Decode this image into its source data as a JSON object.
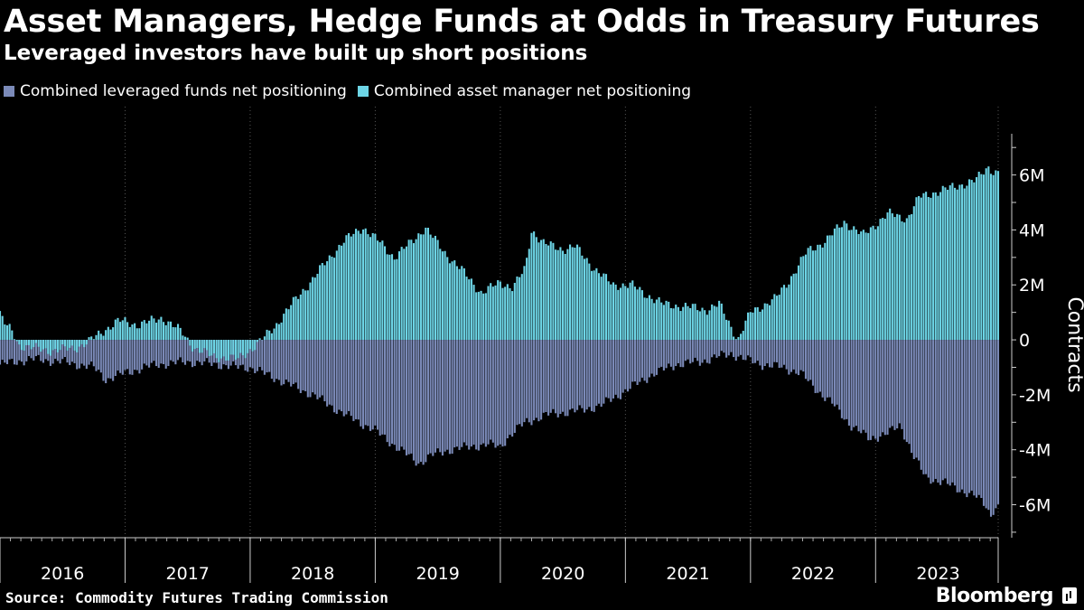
{
  "header": {
    "title": "Asset Managers, Hedge Funds at Odds in Treasury Futures",
    "subtitle": "Leveraged investors have built up short positions"
  },
  "legend": {
    "items": [
      {
        "label": "Combined leveraged funds net positioning",
        "color": "#7b8ab8"
      },
      {
        "label": "Combined asset manager net positioning",
        "color": "#6dd5e6"
      }
    ]
  },
  "footer": {
    "source": "Source: Commodity Futures Trading Commission",
    "brand": "Bloomberg"
  },
  "chart_data": {
    "type": "bar",
    "title": "Asset Managers, Hedge Funds at Odds in Treasury Futures",
    "subtitle": "Leveraged investors have built up short positions",
    "ylabel": "Contracts",
    "ylim": [
      -7.2,
      7.5
    ],
    "yticks": [
      {
        "value": 6,
        "label": "6M"
      },
      {
        "value": 4,
        "label": "4M"
      },
      {
        "value": 2,
        "label": "2M"
      },
      {
        "value": 0,
        "label": "0"
      },
      {
        "value": -2,
        "label": "-2M"
      },
      {
        "value": -4,
        "label": "-4M"
      },
      {
        "value": -6,
        "label": "-6M"
      }
    ],
    "xlim": [
      2016.0,
      2023.98
    ],
    "xticks": [
      {
        "value": 2016.5,
        "label": "2016"
      },
      {
        "value": 2017.5,
        "label": "2017"
      },
      {
        "value": 2018.5,
        "label": "2018"
      },
      {
        "value": 2019.5,
        "label": "2019"
      },
      {
        "value": 2020.5,
        "label": "2020"
      },
      {
        "value": 2021.5,
        "label": "2021"
      },
      {
        "value": 2022.5,
        "label": "2022"
      },
      {
        "value": 2023.5,
        "label": "2023"
      }
    ],
    "year_boundaries": [
      2017,
      2018,
      2019,
      2020,
      2021,
      2022,
      2023
    ],
    "series": [
      {
        "name": "Combined leveraged funds net positioning",
        "color": "#7b8ab8",
        "points": [
          [
            2016.0,
            -0.9
          ],
          [
            2016.25,
            -0.7
          ],
          [
            2016.5,
            -0.8
          ],
          [
            2016.75,
            -1.0
          ],
          [
            2016.85,
            -1.45
          ],
          [
            2017.0,
            -1.2
          ],
          [
            2017.25,
            -0.9
          ],
          [
            2017.5,
            -0.8
          ],
          [
            2017.75,
            -0.9
          ],
          [
            2017.9,
            -1.0
          ],
          [
            2018.0,
            -1.0
          ],
          [
            2018.1,
            -1.2
          ],
          [
            2018.25,
            -1.5
          ],
          [
            2018.5,
            -2.0
          ],
          [
            2018.75,
            -2.7
          ],
          [
            2019.0,
            -3.3
          ],
          [
            2019.2,
            -4.0
          ],
          [
            2019.35,
            -4.5
          ],
          [
            2019.45,
            -4.2
          ],
          [
            2019.6,
            -4.0
          ],
          [
            2019.75,
            -3.9
          ],
          [
            2019.9,
            -3.8
          ],
          [
            2020.0,
            -3.9
          ],
          [
            2020.05,
            -3.6
          ],
          [
            2020.2,
            -3.0
          ],
          [
            2020.4,
            -2.7
          ],
          [
            2020.6,
            -2.6
          ],
          [
            2020.8,
            -2.4
          ],
          [
            2020.95,
            -2.0
          ],
          [
            2021.2,
            -1.3
          ],
          [
            2021.4,
            -0.9
          ],
          [
            2021.6,
            -0.8
          ],
          [
            2021.75,
            -0.6
          ],
          [
            2021.85,
            -0.5
          ],
          [
            2021.95,
            -0.7
          ],
          [
            2022.1,
            -0.9
          ],
          [
            2022.25,
            -1.0
          ],
          [
            2022.4,
            -1.2
          ],
          [
            2022.5,
            -1.7
          ],
          [
            2022.65,
            -2.3
          ],
          [
            2022.8,
            -3.1
          ],
          [
            2022.95,
            -3.6
          ],
          [
            2023.1,
            -3.4
          ],
          [
            2023.2,
            -3.1
          ],
          [
            2023.3,
            -4.2
          ],
          [
            2023.4,
            -5.0
          ],
          [
            2023.55,
            -5.2
          ],
          [
            2023.7,
            -5.5
          ],
          [
            2023.8,
            -5.7
          ],
          [
            2023.88,
            -6.0
          ],
          [
            2023.92,
            -6.4
          ],
          [
            2023.95,
            -6.1
          ]
        ]
      },
      {
        "name": "Combined asset manager net positioning",
        "color": "#6dd5e6",
        "points": [
          [
            2016.0,
            0.95
          ],
          [
            2016.05,
            0.5
          ],
          [
            2016.1,
            0.3
          ],
          [
            2016.15,
            -0.2
          ],
          [
            2016.4,
            -0.4
          ],
          [
            2016.6,
            -0.3
          ],
          [
            2016.7,
            -0.1
          ],
          [
            2016.85,
            0.4
          ],
          [
            2016.95,
            0.7
          ],
          [
            2017.1,
            0.55
          ],
          [
            2017.3,
            0.8
          ],
          [
            2017.45,
            0.3
          ],
          [
            2017.55,
            -0.3
          ],
          [
            2017.7,
            -0.6
          ],
          [
            2017.9,
            -0.7
          ],
          [
            2018.05,
            -0.2
          ],
          [
            2018.2,
            0.5
          ],
          [
            2018.35,
            1.4
          ],
          [
            2018.5,
            2.2
          ],
          [
            2018.6,
            2.8
          ],
          [
            2018.75,
            3.6
          ],
          [
            2018.9,
            4.1
          ],
          [
            2019.05,
            3.5
          ],
          [
            2019.15,
            3.0
          ],
          [
            2019.3,
            3.6
          ],
          [
            2019.4,
            4.1
          ],
          [
            2019.55,
            3.2
          ],
          [
            2019.7,
            2.5
          ],
          [
            2019.85,
            1.7
          ],
          [
            2020.0,
            2.1
          ],
          [
            2020.1,
            1.9
          ],
          [
            2020.2,
            2.6
          ],
          [
            2020.25,
            4.0
          ],
          [
            2020.35,
            3.5
          ],
          [
            2020.5,
            3.3
          ],
          [
            2020.6,
            3.4
          ],
          [
            2020.75,
            2.6
          ],
          [
            2020.9,
            2.0
          ],
          [
            2021.05,
            2.0
          ],
          [
            2021.15,
            1.7
          ],
          [
            2021.3,
            1.3
          ],
          [
            2021.5,
            1.2
          ],
          [
            2021.65,
            1.1
          ],
          [
            2021.75,
            1.3
          ],
          [
            2021.9,
            0.0
          ],
          [
            2022.0,
            1.0
          ],
          [
            2022.2,
            1.5
          ],
          [
            2022.3,
            2.1
          ],
          [
            2022.45,
            3.2
          ],
          [
            2022.6,
            3.6
          ],
          [
            2022.75,
            4.3
          ],
          [
            2022.9,
            3.8
          ],
          [
            2023.0,
            4.2
          ],
          [
            2023.1,
            4.6
          ],
          [
            2023.25,
            4.4
          ],
          [
            2023.35,
            5.2
          ],
          [
            2023.5,
            5.4
          ],
          [
            2023.65,
            5.6
          ],
          [
            2023.8,
            5.8
          ],
          [
            2023.9,
            6.3
          ],
          [
            2023.95,
            6.1
          ]
        ]
      }
    ]
  }
}
